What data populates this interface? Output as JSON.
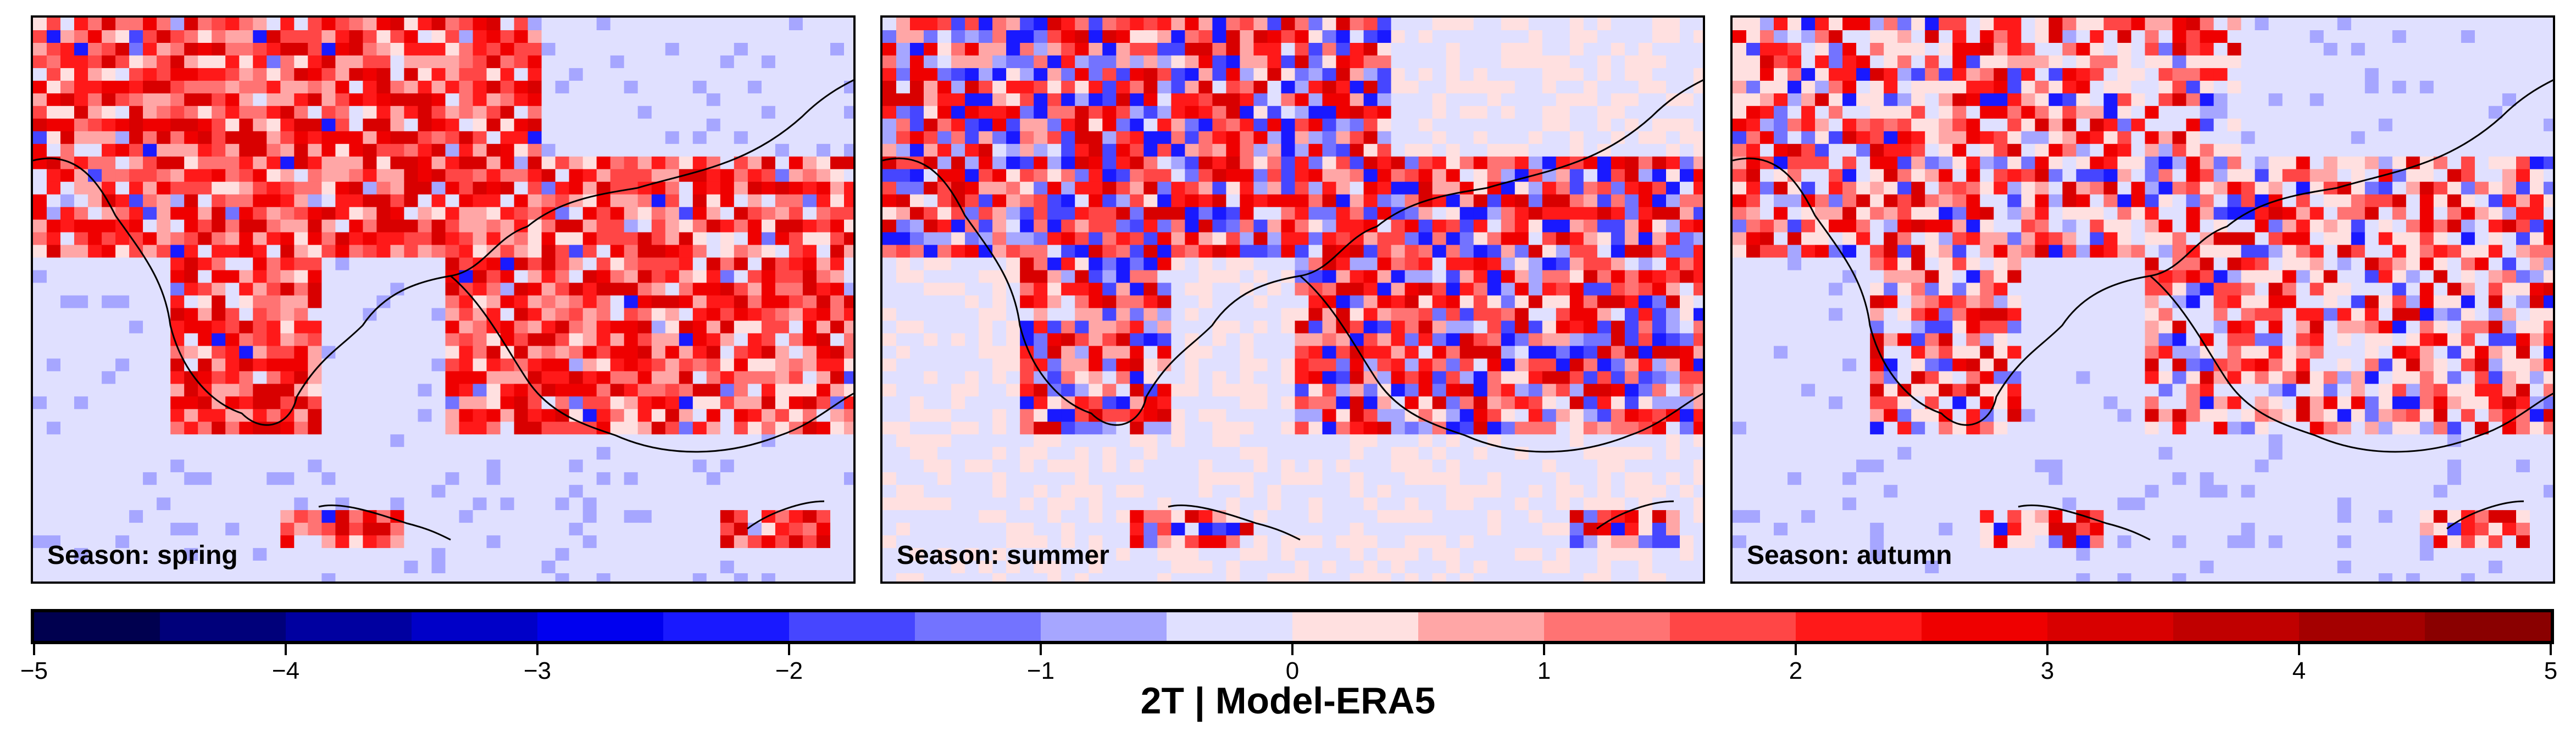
{
  "panels": [
    {
      "label": "Season: spring",
      "hot": 0.82,
      "cold": 0.04
    },
    {
      "label": "Season: summer",
      "hot": 0.55,
      "cold": 0.35
    },
    {
      "label": "Season: autumn",
      "hot": 0.45,
      "cold": 0.18
    }
  ],
  "colorbar": {
    "min": -5,
    "max": 5,
    "step": 0.5,
    "ticks": [
      "−5",
      "−4",
      "−3",
      "−2",
      "−1",
      "0",
      "1",
      "2",
      "3",
      "4",
      "5"
    ],
    "title": "2T | Model-ERA5",
    "colors": [
      "#00004f",
      "#00007a",
      "#0000a0",
      "#0000c8",
      "#0000ef",
      "#1919ff",
      "#4646ff",
      "#7373ff",
      "#a6a6ff",
      "#e0e0ff",
      "#ffe0e0",
      "#ffa6a6",
      "#ff7373",
      "#ff4646",
      "#ff1919",
      "#ef0000",
      "#d80000",
      "#c00000",
      "#a40000",
      "#8a0000"
    ]
  }
}
